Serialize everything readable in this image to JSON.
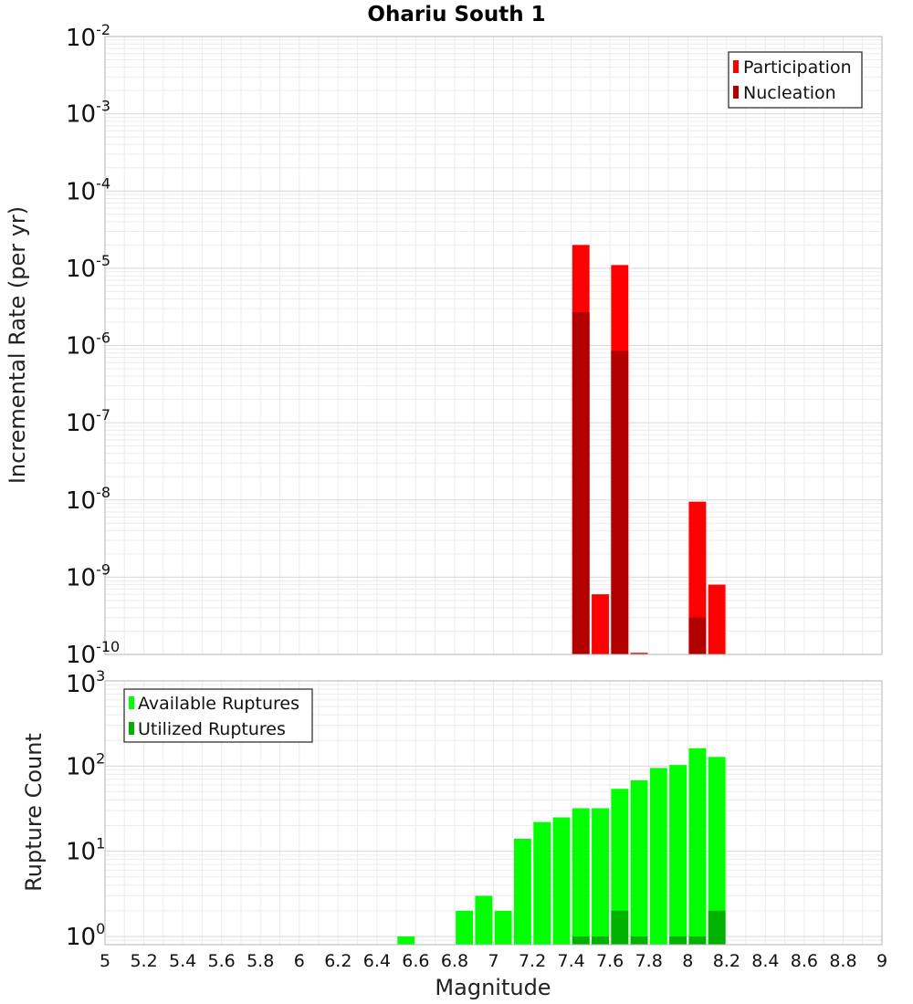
{
  "chart_data": [
    {
      "type": "bar",
      "title": "Ohariu South 1",
      "xlabel": "",
      "ylabel": "Incremental Rate (per yr)",
      "xlim": [
        5,
        9
      ],
      "ylim": [
        1e-10,
        0.01
      ],
      "yscale": "log",
      "grid": true,
      "legend_position": "top-right",
      "bin_width": 0.1,
      "series": [
        {
          "name": "Participation",
          "color": "#ff0000",
          "points": [
            {
              "x": 7.45,
              "y": 2e-05
            },
            {
              "x": 7.55,
              "y": 6e-10
            },
            {
              "x": 7.65,
              "y": 1.1e-05
            },
            {
              "x": 7.75,
              "y": 1.05e-10
            },
            {
              "x": 8.05,
              "y": 9.5e-09
            },
            {
              "x": 8.15,
              "y": 8e-10
            }
          ]
        },
        {
          "name": "Nucleation",
          "color": "#b20000",
          "points": [
            {
              "x": 7.45,
              "y": 2.7e-06
            },
            {
              "x": 7.65,
              "y": 8.5e-07
            },
            {
              "x": 8.05,
              "y": 3e-10
            }
          ]
        }
      ]
    },
    {
      "type": "bar",
      "title": "",
      "xlabel": "Magnitude",
      "ylabel": "Rupture Count",
      "xlim": [
        5,
        9
      ],
      "ylim": [
        0.8,
        1000
      ],
      "yscale": "log",
      "grid": true,
      "legend_position": "top-left",
      "bin_width": 0.1,
      "x_tick_labels": [
        "5",
        "5.2",
        "5.4",
        "5.6",
        "5.8",
        "6",
        "6.2",
        "6.4",
        "6.6",
        "6.8",
        "7",
        "7.2",
        "7.4",
        "7.6",
        "7.8",
        "8",
        "8.2",
        "8.4",
        "8.6",
        "8.8",
        "9"
      ],
      "series": [
        {
          "name": "Available Ruptures",
          "color": "#00ff00",
          "points": [
            {
              "x": 6.55,
              "y": 1
            },
            {
              "x": 6.85,
              "y": 2
            },
            {
              "x": 6.95,
              "y": 3
            },
            {
              "x": 7.05,
              "y": 2
            },
            {
              "x": 7.15,
              "y": 14
            },
            {
              "x": 7.25,
              "y": 22
            },
            {
              "x": 7.35,
              "y": 25
            },
            {
              "x": 7.45,
              "y": 32
            },
            {
              "x": 7.55,
              "y": 32
            },
            {
              "x": 7.65,
              "y": 54
            },
            {
              "x": 7.75,
              "y": 68
            },
            {
              "x": 7.85,
              "y": 95
            },
            {
              "x": 7.95,
              "y": 103
            },
            {
              "x": 8.05,
              "y": 162
            },
            {
              "x": 8.15,
              "y": 128
            }
          ]
        },
        {
          "name": "Utilized Ruptures",
          "color": "#00b200",
          "points": [
            {
              "x": 7.45,
              "y": 1
            },
            {
              "x": 7.55,
              "y": 1
            },
            {
              "x": 7.65,
              "y": 2
            },
            {
              "x": 7.75,
              "y": 1
            },
            {
              "x": 7.95,
              "y": 1
            },
            {
              "x": 8.05,
              "y": 1
            },
            {
              "x": 8.15,
              "y": 2
            }
          ]
        }
      ]
    }
  ]
}
